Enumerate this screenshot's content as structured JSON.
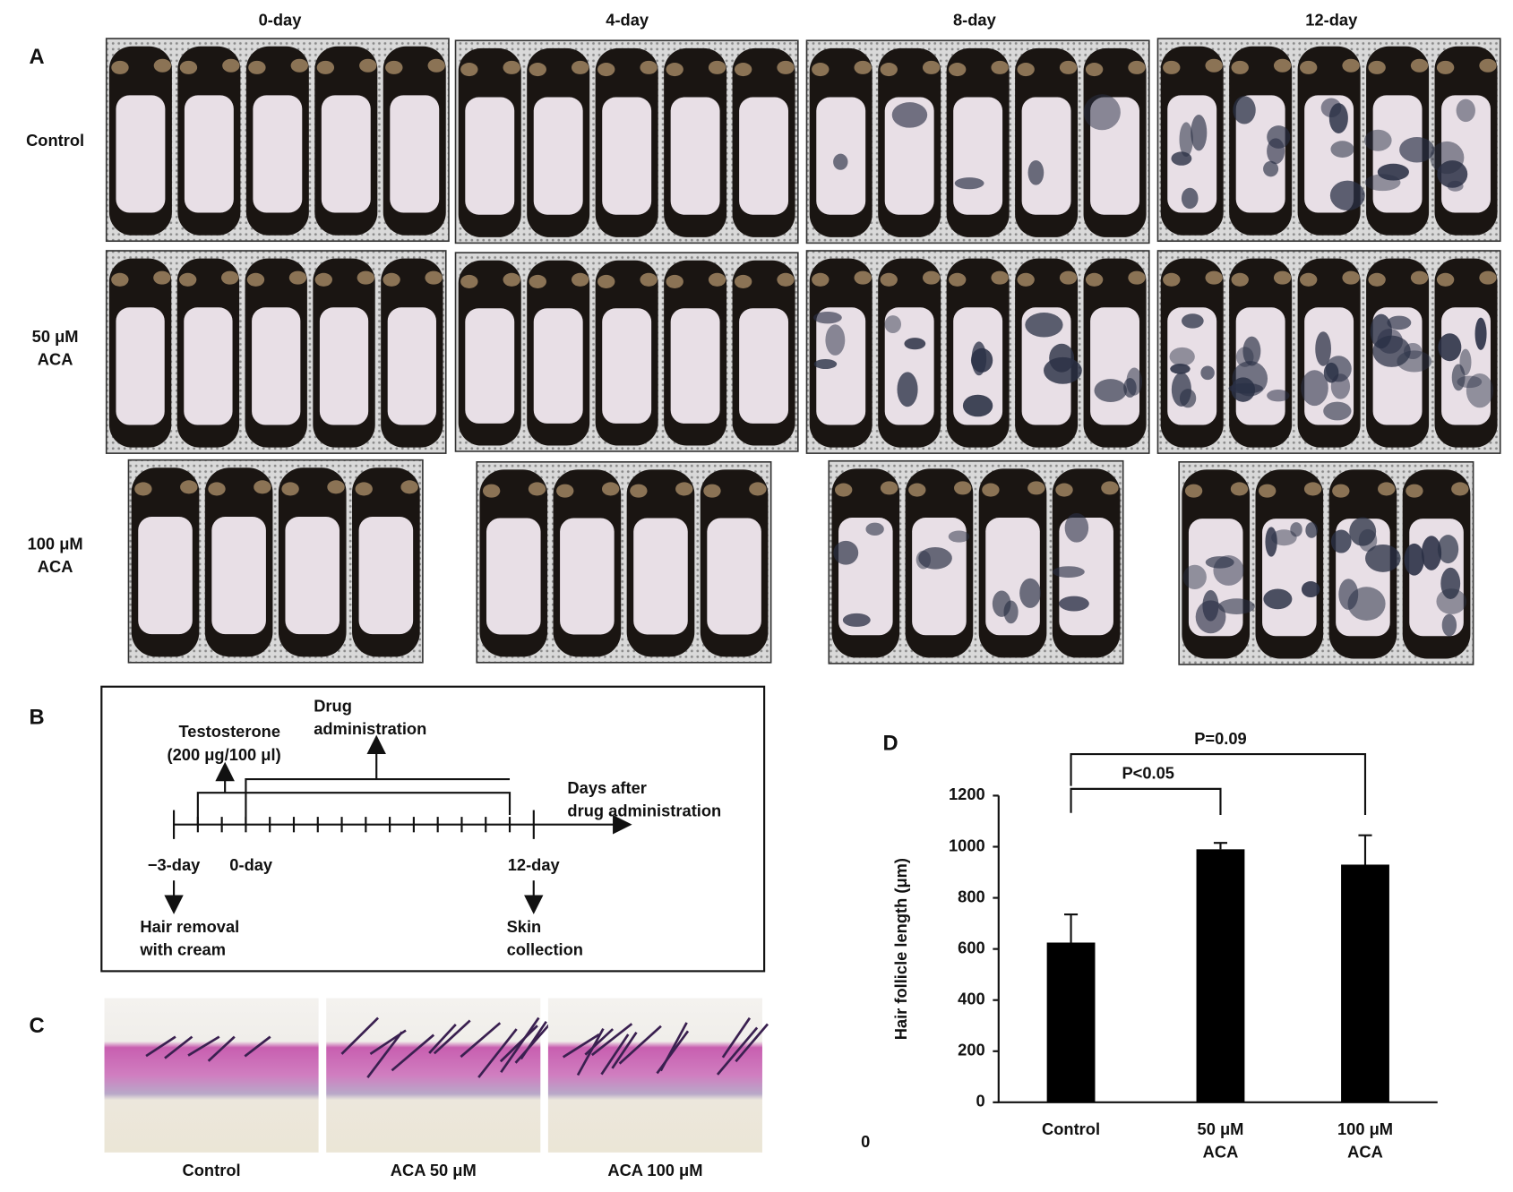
{
  "panel_a": {
    "label": "A",
    "columns": [
      "0-day",
      "4-day",
      "8-day",
      "12-day"
    ],
    "rows": [
      "Control",
      "50 μM\nACA",
      "100 μM\nACA"
    ]
  },
  "panel_b": {
    "label": "B",
    "testosterone": "Testosterone",
    "testosterone_dose": "(200 μg/100 μl)",
    "drug": "Drug\nadministration",
    "days_after": "Days after\ndrug administration",
    "start_day": "−3-day",
    "zero_day": "0-day",
    "end_day": "12-day",
    "hair_removal": "Hair removal\nwith cream",
    "skin": "Skin\ncollection"
  },
  "panel_c": {
    "label": "C",
    "labels": [
      "Control",
      "ACA 50 μM",
      "ACA 100 μM"
    ]
  },
  "panel_d_label": "D",
  "stray_label": "0",
  "chart_data": {
    "type": "bar",
    "y_label": "Hair follicle length (μm)",
    "categories": [
      "Control",
      "50 μM\nACA",
      "100 μM\nACA"
    ],
    "values": [
      625,
      990,
      930
    ],
    "errors": [
      110,
      25,
      115
    ],
    "color": "#000000",
    "ylim": [
      0,
      1200
    ],
    "yticks": [
      0,
      200,
      400,
      600,
      800,
      1000,
      1200
    ],
    "annotations": [
      "P<0.05",
      "P=0.09"
    ]
  }
}
